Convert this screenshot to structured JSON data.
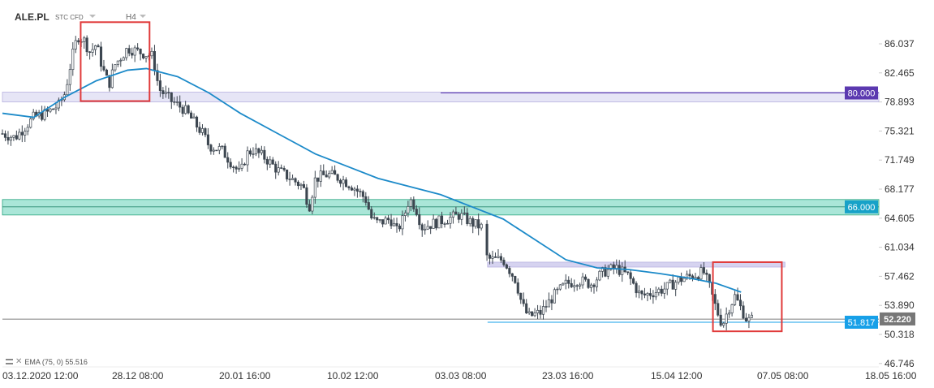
{
  "header": {
    "symbol": "ALE.PL",
    "instrument_type": "STC CFD",
    "timeframe": "H4"
  },
  "indicator": {
    "label": "EMA (75, 0)  55.516"
  },
  "colors": {
    "candle": "#3d4650",
    "ema": "#1c8ac9",
    "zone_top": "#d6d3f0",
    "zone_mid": "#86dcc8",
    "zone_low": "#d6d3f0",
    "tag_80": "#5b39b0",
    "tag_66": "#17a2c8",
    "tag_51": "#17a0e8",
    "tag_price": "#777777",
    "highlight": "#e03a3a"
  },
  "chart_data": {
    "type": "candlestick",
    "y_axis_ticks": [
      "86.037",
      "82.465",
      "78.893",
      "75.321",
      "71.749",
      "68.177",
      "64.605",
      "61.034",
      "57.462",
      "53.890",
      "50.318",
      "46.746"
    ],
    "y_range": [
      46.746,
      89.0
    ],
    "x_axis_labels": [
      "03.12.2020  12:00",
      "28.12  08:00",
      "20.01  16:00",
      "10.02  12:00",
      "03.03  08:00",
      "23.03  16:00",
      "15.04  12:00",
      "07.05  08:00",
      "18.05  16:00"
    ],
    "price_tags": [
      {
        "label": "80.000",
        "value": 80.0
      },
      {
        "label": "66.000",
        "value": 66.0
      },
      {
        "label": "51.817",
        "value": 51.817
      }
    ],
    "current_price": {
      "label": "52.220",
      "value": 52.22
    },
    "zones": [
      {
        "from": 78.893,
        "to": 80.1
      },
      {
        "from": 65.0,
        "to": 66.9
      },
      {
        "from": 58.6,
        "to": 59.2
      }
    ],
    "close_path": [
      [
        0,
        75.0
      ],
      [
        4,
        74.5
      ],
      [
        10,
        77.0
      ],
      [
        14,
        77.5
      ],
      [
        18,
        78.5
      ],
      [
        20,
        80.0
      ],
      [
        22,
        84.0
      ],
      [
        24,
        87.0
      ],
      [
        26,
        86.5
      ],
      [
        28,
        85.0
      ],
      [
        30,
        86.0
      ],
      [
        32,
        83.0
      ],
      [
        34,
        81.0
      ],
      [
        36,
        83.5
      ],
      [
        40,
        85.5
      ],
      [
        44,
        85.0
      ],
      [
        48,
        84.5
      ],
      [
        50,
        80.5
      ],
      [
        54,
        79.0
      ],
      [
        58,
        78.0
      ],
      [
        60,
        77.0
      ],
      [
        64,
        75.0
      ],
      [
        66,
        73.5
      ],
      [
        70,
        73.0
      ],
      [
        72,
        72.0
      ],
      [
        76,
        70.0
      ],
      [
        78,
        72.5
      ],
      [
        80,
        73.0
      ],
      [
        84,
        72.0
      ],
      [
        88,
        70.5
      ],
      [
        92,
        69.5
      ],
      [
        96,
        68.5
      ],
      [
        98,
        66.0
      ],
      [
        100,
        69.5
      ],
      [
        104,
        70.0
      ],
      [
        108,
        69.5
      ],
      [
        112,
        68.5
      ],
      [
        116,
        67.0
      ],
      [
        118,
        64.5
      ],
      [
        120,
        64.0
      ],
      [
        124,
        64.5
      ],
      [
        126,
        63.0
      ],
      [
        128,
        64.5
      ],
      [
        130,
        67.0
      ],
      [
        132,
        66.0
      ],
      [
        134,
        63.5
      ],
      [
        138,
        64.0
      ],
      [
        142,
        64.5
      ],
      [
        146,
        65.0
      ],
      [
        150,
        64.0
      ],
      [
        153,
        63.5
      ],
      [
        154,
        60.0
      ],
      [
        156,
        59.5
      ],
      [
        160,
        59.5
      ],
      [
        164,
        57.0
      ],
      [
        166,
        54.0
      ],
      [
        168,
        52.5
      ],
      [
        172,
        53.0
      ],
      [
        176,
        55.0
      ],
      [
        180,
        56.5
      ],
      [
        184,
        57.0
      ],
      [
        188,
        56.5
      ],
      [
        192,
        58.0
      ],
      [
        196,
        58.5
      ],
      [
        200,
        57.5
      ],
      [
        204,
        55.0
      ],
      [
        208,
        55.5
      ],
      [
        212,
        56.0
      ],
      [
        216,
        57.0
      ],
      [
        220,
        57.5
      ],
      [
        224,
        58.0
      ],
      [
        226,
        56.0
      ],
      [
        228,
        53.5
      ],
      [
        230,
        51.5
      ],
      [
        232,
        53.5
      ],
      [
        234,
        55.0
      ],
      [
        236,
        53.5
      ],
      [
        238,
        52.0
      ],
      [
        240,
        52.22
      ]
    ],
    "ema_path": [
      [
        0,
        77.5
      ],
      [
        10,
        77.0
      ],
      [
        20,
        79.5
      ],
      [
        30,
        81.5
      ],
      [
        40,
        82.8
      ],
      [
        46,
        83.0
      ],
      [
        56,
        82.0
      ],
      [
        66,
        80.0
      ],
      [
        76,
        77.5
      ],
      [
        88,
        75.0
      ],
      [
        100,
        72.5
      ],
      [
        110,
        71.0
      ],
      [
        120,
        69.5
      ],
      [
        130,
        68.5
      ],
      [
        140,
        67.5
      ],
      [
        150,
        66.0
      ],
      [
        160,
        64.5
      ],
      [
        170,
        62.0
      ],
      [
        180,
        59.5
      ],
      [
        190,
        58.5
      ],
      [
        200,
        58.3
      ],
      [
        210,
        57.8
      ],
      [
        220,
        57.2
      ],
      [
        228,
        56.6
      ],
      [
        236,
        55.516
      ]
    ],
    "highlight_boxes": [
      {
        "x_from": 25,
        "x_to": 47,
        "y_from": 79.0,
        "y_to": 88.7
      },
      {
        "x_from": 227,
        "x_to": 249,
        "y_from": 50.7,
        "y_to": 59.2
      }
    ],
    "level_line": {
      "x_from": 140,
      "value": 80.0
    },
    "support_line": {
      "x_from": 155,
      "value": 51.817
    },
    "horizontal_line": {
      "value": 52.2
    }
  }
}
